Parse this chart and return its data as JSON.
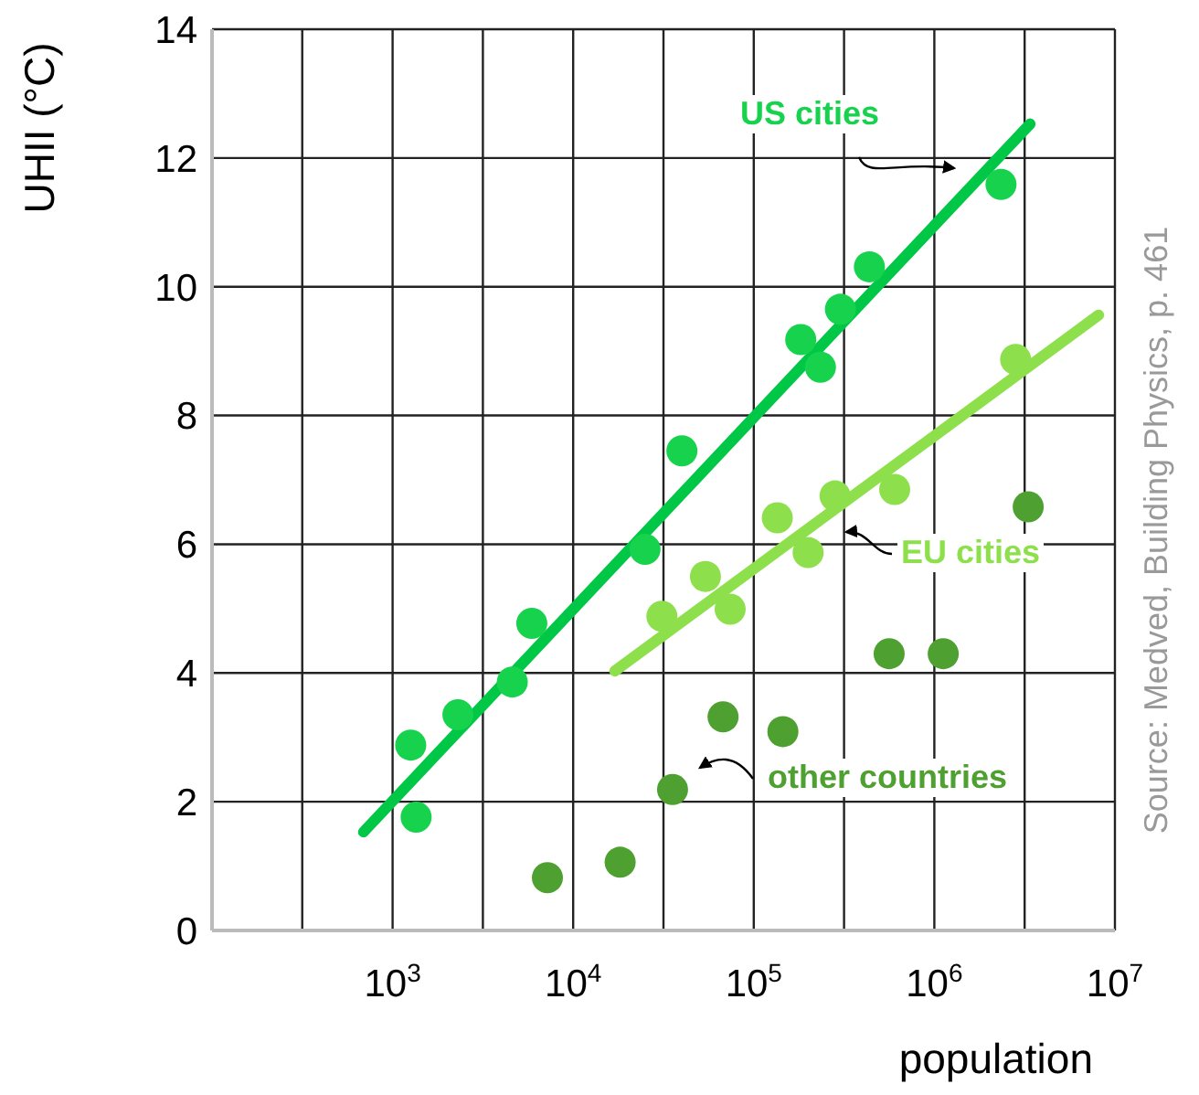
{
  "chart_data": {
    "type": "scatter",
    "xlabel": "population",
    "ylabel": "UHII (°C)",
    "log": "x",
    "grid": true,
    "legend": false,
    "xlim": [
      100,
      10000000
    ],
    "xticks": [
      {
        "value": 100,
        "label": null
      },
      {
        "value": 316,
        "label": null
      },
      {
        "value": 1000,
        "label": "10$^{3}$"
      },
      {
        "value": 3162,
        "label": null
      },
      {
        "value": 10000,
        "label": "10$^{4}$"
      },
      {
        "value": 31623,
        "label": null
      },
      {
        "value": 100000,
        "label": "10$^{5}$"
      },
      {
        "value": 316228,
        "label": null
      },
      {
        "value": 1000000,
        "label": "10$^{6}$"
      },
      {
        "value": 3162278,
        "label": null
      },
      {
        "value": 10000000,
        "label": "10$^{7}$"
      }
    ],
    "ylim": [
      0,
      14
    ],
    "yticks": [
      0,
      2,
      4,
      6,
      8,
      10,
      12,
      14
    ],
    "annotations": [
      "Source: Medved, Building Physics, p. 461"
    ],
    "series": [
      {
        "marker": "circle",
        "name": "US cities",
        "color": "#16d24c",
        "x": [
          1260,
          1350,
          2300,
          4600,
          5900,
          25000,
          40000,
          182000,
          234000,
          302000,
          437000,
          2340000
        ],
        "values": [
          2.88,
          1.76,
          3.35,
          3.86,
          4.77,
          5.92,
          7.45,
          9.18,
          8.75,
          9.65,
          10.31,
          11.59
        ]
      },
      {
        "type": "line",
        "color": "#00c846",
        "x": [
          690,
          3390000
        ],
        "values": [
          1.53,
          12.53
        ]
      },
      {
        "marker": "circle",
        "name": "EU cities",
        "color": "#8de04b",
        "x": [
          31000,
          54000,
          74000,
          135000,
          200000,
          282000,
          603000,
          2820000
        ],
        "values": [
          4.88,
          5.5,
          4.99,
          6.41,
          5.87,
          6.75,
          6.85,
          8.87
        ]
      },
      {
        "type": "line",
        "color": "#8de04b",
        "x": [
          17000,
          8130000
        ],
        "values": [
          4.03,
          9.56
        ]
      },
      {
        "marker": "circle",
        "name": "other countries",
        "color": "#4ea131",
        "x": [
          7200,
          18200,
          35500,
          67600,
          145000,
          562000,
          1120000,
          3310000
        ],
        "values": [
          0.82,
          1.06,
          2.19,
          3.32,
          3.09,
          4.3,
          4.3,
          6.58
        ]
      }
    ]
  }
}
